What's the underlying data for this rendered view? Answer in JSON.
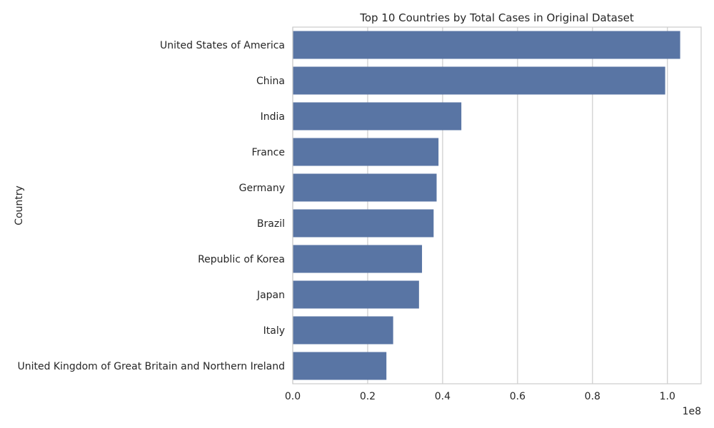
{
  "chart_data": {
    "type": "bar",
    "orientation": "horizontal",
    "title": "Top 10 Countries by Total Cases in Original Dataset",
    "xlabel": "",
    "ylabel": "Country",
    "x_offset_label": "1e8",
    "xlim": [
      0,
      1.09
    ],
    "x_ticks": [
      0.0,
      0.2,
      0.4,
      0.6,
      0.8,
      1.0
    ],
    "x_tick_labels": [
      "0.0",
      "0.2",
      "0.4",
      "0.6",
      "0.8",
      "1.0"
    ],
    "grid": true,
    "bar_color": "#5975a4",
    "categories": [
      "United States of America",
      "China",
      "India",
      "France",
      "Germany",
      "Brazil",
      "Republic of Korea",
      "Japan",
      "Italy",
      "United Kingdom of Great Britain and Northern Ireland"
    ],
    "values": [
      1.034,
      0.994,
      0.45,
      0.389,
      0.384,
      0.376,
      0.345,
      0.337,
      0.268,
      0.25
    ]
  }
}
